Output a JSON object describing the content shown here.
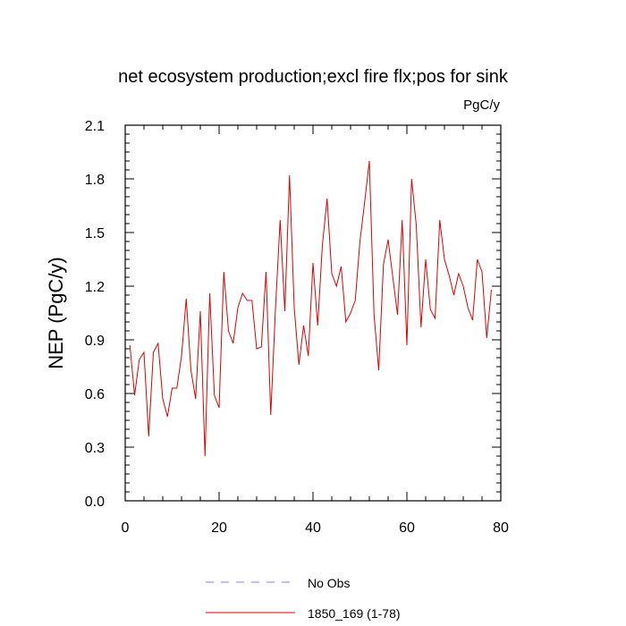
{
  "chart_data": {
    "type": "line",
    "title": "net ecosystem production;excl fire flx;pos for sink",
    "units_label": "PgC/y",
    "ylabel": "NEP  (PgC/y)",
    "xlabel": "",
    "xlim": [
      0,
      80
    ],
    "ylim": [
      0,
      2.1
    ],
    "x_ticks": [
      0,
      20,
      40,
      60,
      80
    ],
    "x_tick_labels": [
      "0",
      "20",
      "40",
      "60",
      "80"
    ],
    "y_ticks": [
      0,
      0.3,
      0.6,
      0.9,
      1.2,
      1.5,
      1.8,
      2.1
    ],
    "y_tick_labels": [
      "0.0",
      "0.3",
      "0.6",
      "0.9",
      "1.2",
      "1.5",
      "1.8",
      "2.1"
    ],
    "grid": false,
    "legend_position": "bottom",
    "legend": [
      {
        "label": "No Obs",
        "color": "#7f7fff",
        "style": "dashed"
      },
      {
        "label": "1850_169 (1-78)",
        "color": "#e00000",
        "style": "solid"
      }
    ],
    "series": [
      {
        "name": "1850_169 (1-78)",
        "color": "#e00000",
        "x": [
          1,
          2,
          3,
          4,
          5,
          6,
          7,
          8,
          9,
          10,
          11,
          12,
          13,
          14,
          15,
          16,
          17,
          18,
          19,
          20,
          21,
          22,
          23,
          24,
          25,
          26,
          27,
          28,
          29,
          30,
          31,
          32,
          33,
          34,
          35,
          36,
          37,
          38,
          39,
          40,
          41,
          42,
          43,
          44,
          45,
          46,
          47,
          48,
          49,
          50,
          51,
          52,
          53,
          54,
          55,
          56,
          57,
          58,
          59,
          60,
          61,
          62,
          63,
          64,
          65,
          66,
          67,
          68,
          69,
          70,
          71,
          72,
          73,
          74,
          75,
          76,
          77,
          78
        ],
        "values": [
          0.87,
          0.59,
          0.79,
          0.83,
          0.36,
          0.83,
          0.88,
          0.57,
          0.47,
          0.63,
          0.63,
          0.81,
          1.13,
          0.73,
          0.57,
          1.06,
          0.25,
          1.16,
          0.59,
          0.52,
          1.28,
          0.95,
          0.88,
          1.08,
          1.16,
          1.12,
          1.12,
          0.85,
          0.86,
          1.28,
          0.48,
          1.07,
          1.57,
          1.06,
          1.82,
          1.08,
          0.76,
          0.98,
          0.81,
          1.33,
          0.98,
          1.43,
          1.69,
          1.27,
          1.2,
          1.31,
          1.0,
          1.05,
          1.12,
          1.45,
          1.67,
          1.9,
          1.04,
          0.73,
          1.32,
          1.46,
          1.25,
          1.04,
          1.57,
          0.87,
          1.8,
          1.54,
          0.97,
          1.35,
          1.07,
          1.02,
          1.57,
          1.35,
          1.26,
          1.15,
          1.27,
          1.2,
          1.08,
          1.01,
          1.35,
          1.28,
          0.91,
          1.18
        ]
      }
    ]
  }
}
